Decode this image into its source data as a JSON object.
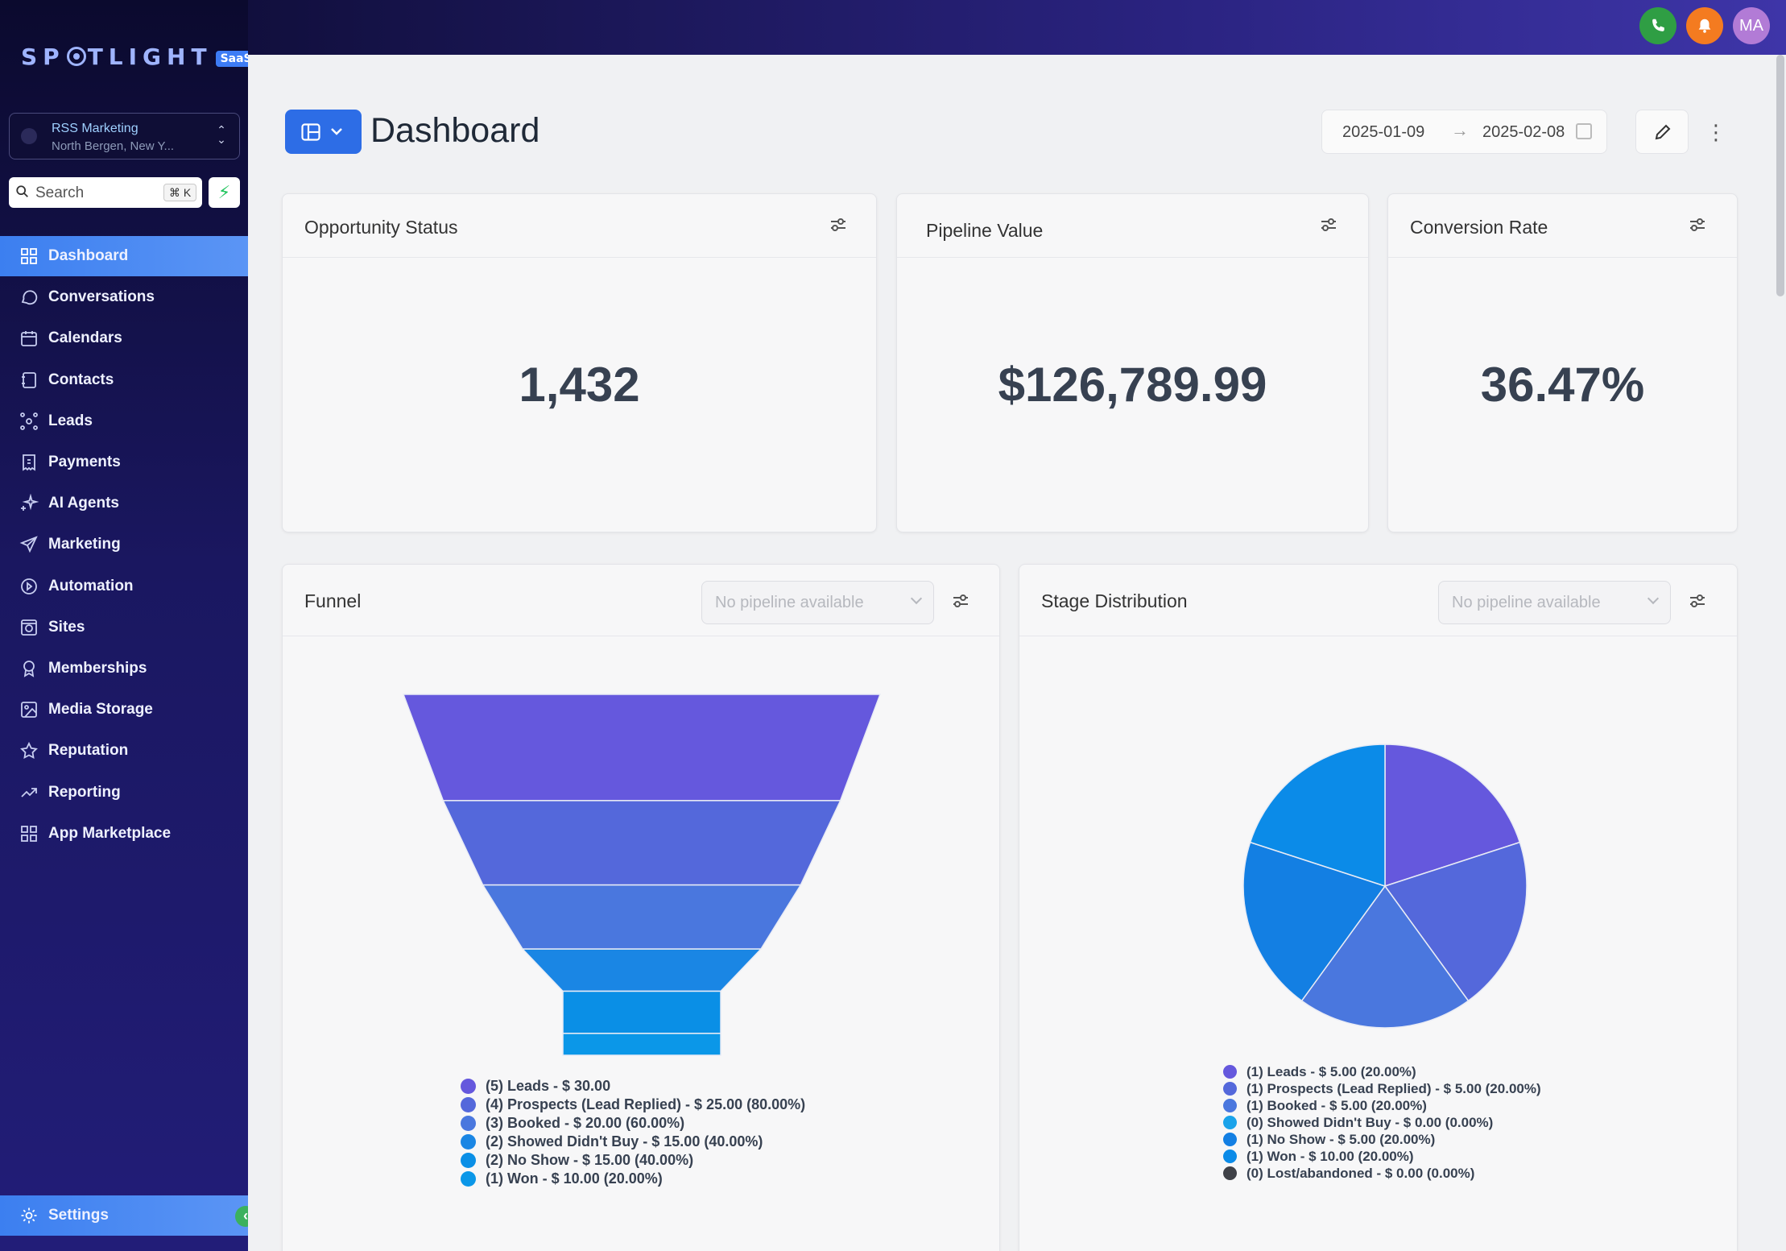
{
  "brand": {
    "logo_pre": "SP",
    "logo_post": "TLIGHT",
    "badge": "SaaS"
  },
  "location": {
    "name": "RSS Marketing",
    "address": "North Bergen, New Y..."
  },
  "search": {
    "placeholder": "Search",
    "shortcut": "⌘ K"
  },
  "nav": [
    {
      "label": "Dashboard",
      "icon": "dashboard-icon",
      "active": true
    },
    {
      "label": "Conversations",
      "icon": "chat-bubble-icon"
    },
    {
      "label": "Calendars",
      "icon": "calendar-icon"
    },
    {
      "label": "Contacts",
      "icon": "contacts-book-icon"
    },
    {
      "label": "Leads",
      "icon": "leads-network-icon"
    },
    {
      "label": "Payments",
      "icon": "invoice-icon"
    },
    {
      "label": "AI Agents",
      "icon": "sparkle-icon"
    },
    {
      "label": "Marketing",
      "icon": "paper-plane-icon"
    },
    {
      "label": "Automation",
      "icon": "automation-icon"
    },
    {
      "label": "Sites",
      "icon": "globe-box-icon"
    },
    {
      "label": "Memberships",
      "icon": "badge-icon"
    },
    {
      "label": "Media Storage",
      "icon": "image-icon"
    },
    {
      "label": "Reputation",
      "icon": "star-icon"
    },
    {
      "label": "Reporting",
      "icon": "trend-line-icon"
    },
    {
      "label": "App Marketplace",
      "icon": "apps-grid-icon"
    }
  ],
  "settings": {
    "label": "Settings"
  },
  "topbar": {
    "avatar_initials": "MA",
    "phone_color": "#2f9e44",
    "bell_color": "#f47b20",
    "avatar_color": "#b27bd6"
  },
  "header": {
    "title": "Dashboard",
    "date_start": "2025-01-09",
    "date_end": "2025-02-08"
  },
  "cards": {
    "opportunity": {
      "title": "Opportunity Status",
      "value": "1,432"
    },
    "pipeline": {
      "title": "Pipeline Value",
      "value": "$126,789.99"
    },
    "conversion": {
      "title": "Conversion Rate",
      "value": "36.47%"
    }
  },
  "funnel": {
    "title": "Funnel",
    "select_placeholder": "No pipeline available"
  },
  "stage": {
    "title": "Stage Distribution",
    "select_placeholder": "No pipeline available"
  },
  "chart_data": [
    {
      "type": "funnel",
      "categories": [
        "Leads",
        "Prospects (Lead Replied)",
        "Booked",
        "Showed Didn't Buy",
        "No Show",
        "Won"
      ],
      "counts": [
        5,
        4,
        3,
        2,
        2,
        1
      ],
      "values": [
        30.0,
        25.0,
        20.0,
        15.0,
        15.0,
        10.0
      ],
      "percents": [
        null,
        80.0,
        60.0,
        40.0,
        40.0,
        20.0
      ],
      "colors": [
        "#6558dd",
        "#5468db",
        "#4a77de",
        "#1a86e4",
        "#0a8fe6",
        "#0b97e8"
      ],
      "legend": [
        "(5) Leads - $ 30.00",
        "(4) Prospects (Lead Replied) - $ 25.00 (80.00%)",
        "(3) Booked - $ 20.00 (60.00%)",
        "(2) Showed Didn't Buy - $ 15.00 (40.00%)",
        "(2) No Show - $ 15.00 (40.00%)",
        "(1) Won - $ 10.00 (20.00%)"
      ]
    },
    {
      "type": "pie",
      "categories": [
        "Leads",
        "Prospects (Lead Replied)",
        "Booked",
        "Showed Didn't Buy",
        "No Show",
        "Won",
        "Lost/abandoned"
      ],
      "counts": [
        1,
        1,
        1,
        0,
        1,
        1,
        0
      ],
      "values": [
        5.0,
        5.0,
        5.0,
        0.0,
        5.0,
        10.0,
        0.0
      ],
      "percents": [
        20.0,
        20.0,
        20.0,
        0.0,
        20.0,
        20.0,
        0.0
      ],
      "colors": [
        "#6558dd",
        "#5468db",
        "#4a77de",
        "#1aa3ea",
        "#137fe3",
        "#0b8be8",
        "#3f4148"
      ],
      "legend": [
        "(1) Leads - $ 5.00 (20.00%)",
        "(1) Prospects (Lead Replied) - $ 5.00 (20.00%)",
        "(1) Booked - $ 5.00 (20.00%)",
        "(0) Showed Didn't Buy - $ 0.00 (0.00%)",
        "(1) No Show - $ 5.00 (20.00%)",
        "(1) Won - $ 10.00 (20.00%)",
        "(0) Lost/abandoned - $ 0.00 (0.00%)"
      ]
    }
  ]
}
